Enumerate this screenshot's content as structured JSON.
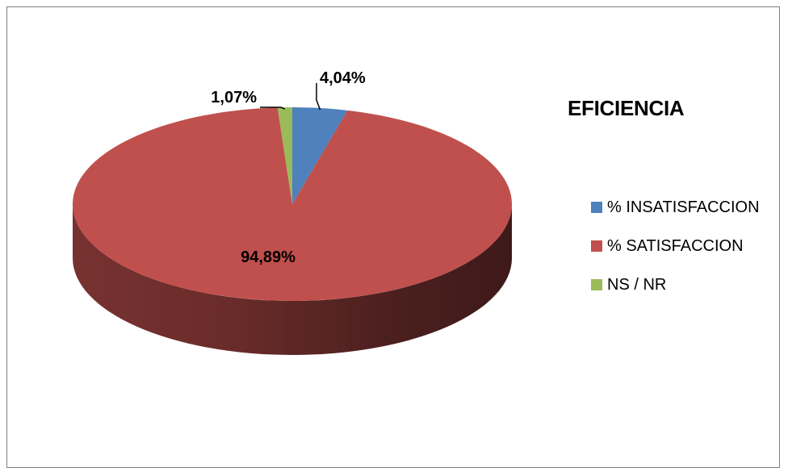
{
  "chart_data": {
    "type": "pie",
    "title": "EFICIENCIA",
    "categories": [
      "% INSATISFACCION",
      "% SATISFACCION",
      "NS / NR"
    ],
    "values": [
      4.04,
      94.89,
      1.07
    ],
    "data_labels": [
      "4,04%",
      "94,89%",
      "1,07%"
    ],
    "colors": [
      "#4f81bd",
      "#c0504d",
      "#9bbb59"
    ],
    "legend_position": "right"
  }
}
